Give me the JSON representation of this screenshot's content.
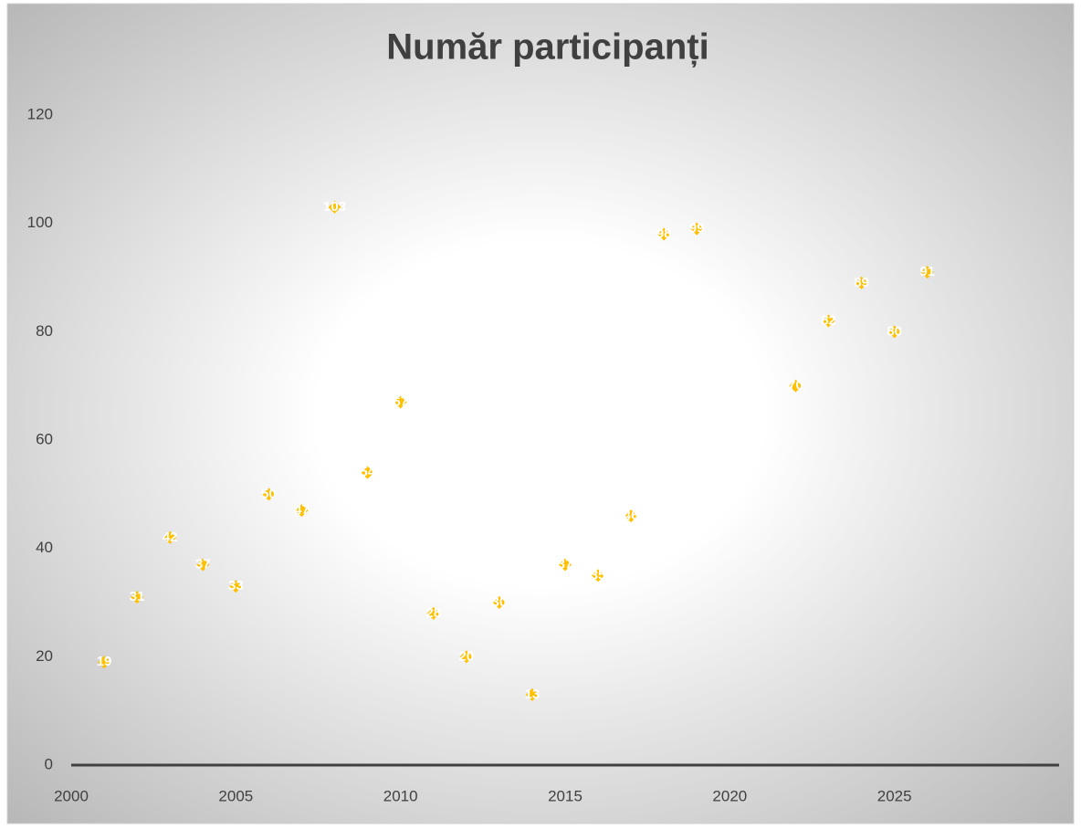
{
  "chart_data": {
    "type": "scatter",
    "title": "Număr participanți",
    "x": [
      2001,
      2002,
      2003,
      2004,
      2005,
      2006,
      2007,
      2008,
      2009,
      2010,
      2011,
      2012,
      2013,
      2014,
      2015,
      2016,
      2017,
      2018,
      2019,
      2022,
      2023,
      2024,
      2025,
      2026
    ],
    "values": [
      19,
      31,
      42,
      37,
      33,
      50,
      47,
      103,
      54,
      67,
      28,
      20,
      30,
      13,
      37,
      35,
      46,
      98,
      99,
      70,
      82,
      89,
      80,
      91
    ],
    "color": "#ffc000",
    "xlim": [
      2000,
      2030
    ],
    "xticks": [
      2000,
      2005,
      2010,
      2015,
      2020,
      2025
    ],
    "ylim": [
      0,
      120
    ],
    "yticks": [
      0,
      20,
      40,
      60,
      80,
      100,
      120
    ],
    "grid": false
  }
}
